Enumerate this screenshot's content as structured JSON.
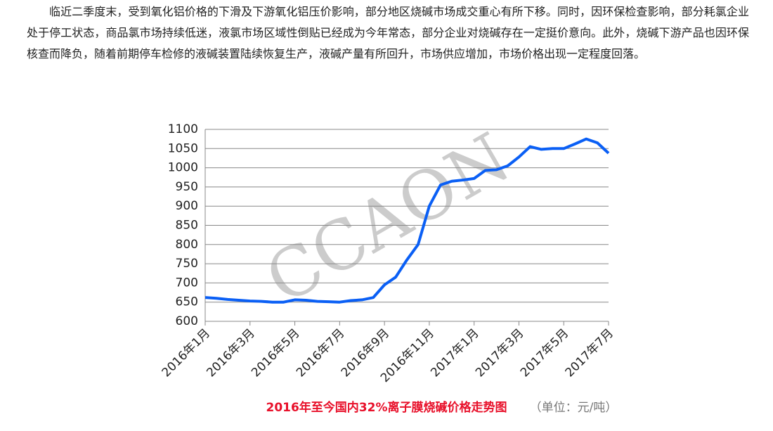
{
  "paragraph": "临近二季度末，受到氧化铝价格的下滑及下游氧化铝压价影响，部分地区烧碱市场成交重心有所下移。同时，因环保检查影响，部分耗氯企业处于停工状态，商品氯市场持续低迷，液氯市场区域性倒贴已经成为今年常态，部分企业对烧碱存在一定挺价意向。此外，烧碱下游产品也因环保核查而降负，随着前期停车检修的液碱装置陆续恢复生产，液碱产量有所回升，市场供应增加，市场价格出现一定程度回落。",
  "chart_data": {
    "type": "line",
    "title": "2016年至今国内32%离子膜烧碱价格走势图",
    "subtitle": "（单位：元/吨）",
    "watermark": "CCAON",
    "categories": [
      "2016年1月",
      null,
      null,
      null,
      "2016年3月",
      null,
      null,
      null,
      "2016年5月",
      null,
      null,
      null,
      "2016年7月",
      null,
      null,
      null,
      "2016年9月",
      null,
      null,
      null,
      "2016年11月",
      null,
      null,
      null,
      "2017年1月",
      null,
      null,
      null,
      "2017年3月",
      null,
      null,
      null,
      "2017年5月",
      null,
      null,
      null,
      "2017年7月"
    ],
    "series": [
      {
        "name": "32%离子膜烧碱",
        "color": "#0a5ff5",
        "values": [
          662,
          660,
          657,
          655,
          653,
          652,
          650,
          650,
          656,
          655,
          652,
          651,
          650,
          654,
          656,
          662,
          695,
          715,
          760,
          800,
          900,
          955,
          965,
          968,
          972,
          993,
          995,
          1005,
          1028,
          1055,
          1048,
          1050,
          1050,
          1062,
          1075,
          1065,
          1038
        ]
      }
    ],
    "ylim": [
      600,
      1100
    ],
    "yticks": [
      600,
      650,
      700,
      750,
      800,
      850,
      900,
      950,
      1000,
      1050,
      1100
    ],
    "grid": true
  }
}
